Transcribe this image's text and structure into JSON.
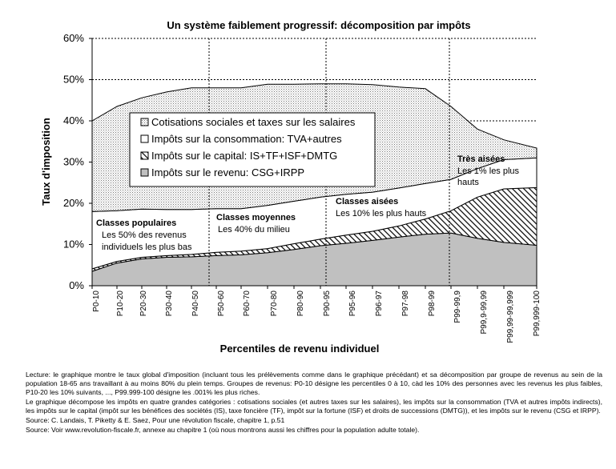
{
  "chart_data": {
    "type": "area",
    "stacked": true,
    "title": "Un système faiblement progressif: décomposition par impôts",
    "xlabel": "Percentiles de revenu individuel",
    "ylabel": "Taux d'imposition",
    "ylim": [
      0,
      60
    ],
    "yticks": [
      "0%",
      "10%",
      "20%",
      "30%",
      "40%",
      "50%",
      "60%"
    ],
    "categories": [
      "P0-10",
      "P10-20",
      "P20-30",
      "P30-40",
      "P40-50",
      "P50-60",
      "P60-70",
      "P70-80",
      "P80-90",
      "P90-95",
      "P95-96",
      "P96-97",
      "P97-98",
      "P98-99",
      "P99-99,9",
      "P99,9-99,99",
      "P99,99-99,999",
      "P99,999-100"
    ],
    "series": [
      {
        "name": "Impôts sur le revenu: CSG+IRPP",
        "pattern": "gray",
        "values": [
          3.5,
          5.5,
          6.5,
          6.9,
          7.0,
          7.3,
          7.5,
          8.0,
          8.8,
          9.7,
          10.3,
          11.0,
          11.8,
          12.5,
          12.8,
          11.5,
          10.5,
          9.8
        ]
      },
      {
        "name": "Impôts sur le capital: IS+TF+ISF+DMTG",
        "pattern": "hatch",
        "values": [
          0.6,
          0.4,
          0.4,
          0.4,
          0.6,
          0.8,
          0.9,
          1.0,
          1.4,
          1.6,
          2.0,
          2.2,
          2.7,
          3.7,
          5.4,
          10.0,
          13.0,
          14.0
        ]
      },
      {
        "name": "Impôts sur la consommation: TVA+autres",
        "pattern": "white",
        "values": [
          13.9,
          12.3,
          11.7,
          11.2,
          10.9,
          10.6,
          10.3,
          10.5,
          10.3,
          10.2,
          9.9,
          9.5,
          9.2,
          8.6,
          7.6,
          6.9,
          7.1,
          7.2
        ]
      },
      {
        "name": "Cotisations sociales et taxes sur les salaires",
        "pattern": "dots",
        "values": [
          22.0,
          25.3,
          27.0,
          28.5,
          29.5,
          29.3,
          29.3,
          29.4,
          28.4,
          27.5,
          26.8,
          26.1,
          24.5,
          23.0,
          17.7,
          9.6,
          4.8,
          2.4
        ]
      }
    ],
    "legend": [
      {
        "label": "Cotisations sociales et taxes sur les salaires",
        "pattern": "dots"
      },
      {
        "label": "Impôts sur la consommation: TVA+autres",
        "pattern": "white"
      },
      {
        "label": "Impôts sur le capital: IS+TF+ISF+DMTG",
        "pattern": "hatch"
      },
      {
        "label": "Impôts sur le revenu: CSG+IRPP",
        "pattern": "gray"
      }
    ],
    "annotations": [
      {
        "title": "Classes populaires",
        "lines": [
          "Les 50% des revenus",
          "individuels les plus bas"
        ]
      },
      {
        "title": "Classes moyennes",
        "lines": [
          "Les 40% du milieu"
        ]
      },
      {
        "title": "Classes aisées",
        "lines": [
          "Les 10% les plus hauts"
        ]
      },
      {
        "title": "Très aisées",
        "lines": [
          "Les 1% les plus",
          "hauts"
        ]
      }
    ]
  },
  "notes": [
    "Lecture: le graphique montre le taux global d'imposition (incluant tous les prélèvements comme dans le graphique précédant) et sa décomposition par groupe de revenus au sein de la population 18-65 ans travaillant à au moins 80% du plein temps. Groupes de revenus: P0-10 désigne les percentiles 0 à 10, càd les 10% des personnes avec les revenus les plus faibles, P10-20 les 10% suivants, ..., P99.999-100 désigne les .001% les plus riches.",
    "Le graphique décompose les impôts en quatre grandes catégories : cotisations sociales (et autres taxes sur les salaires), les impôts sur la consommation (TVA et autres impôts indirects), les impôts sur le capital (impôt sur les bénéfices des sociétés (IS), taxe foncière (TF), impôt sur la fortune (ISF) et droits de successions (DMTG)), et les impôts sur le revenu (CSG et IRPP).",
    "Source: C. Landais, T. Piketty & E. Saez, Pour une révolution fiscale, chapitre 1, p.51",
    "Source: Voir www.revolution-fiscale.fr, annexe au chapitre 1 (où nous montrons aussi les chiffres pour la population adulte totale)."
  ]
}
